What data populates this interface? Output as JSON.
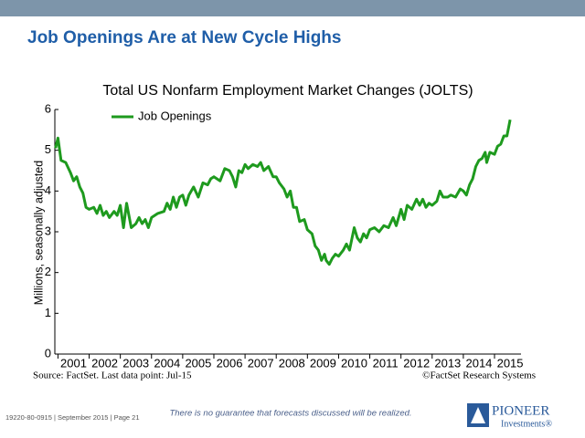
{
  "slide": {
    "title": "Job Openings Are at New Cycle Highs",
    "source": "Source: FactSet. Last data point: Jul-15",
    "copyright": "©FactSet Research Systems",
    "footer_code": "19220-80-0915 | September 2015 | Page 21",
    "disclaimer": "There is no guarantee that forecasts discussed will be realized.",
    "logo_name": "PIONEER",
    "logo_sub": "Investments®"
  },
  "chart_data": {
    "type": "line",
    "title": "Total US Nonfarm Employment Market Changes (JOLTS)",
    "ylabel": "Millions, seasonally adjusted",
    "xlim": [
      2000.9,
      2015.85
    ],
    "ylim": [
      0,
      6
    ],
    "yticks": [
      0,
      1,
      2,
      3,
      4,
      5,
      6
    ],
    "xticks": [
      2001,
      2002,
      2003,
      2004,
      2005,
      2006,
      2007,
      2008,
      2009,
      2010,
      2011,
      2012,
      2013,
      2014,
      2015
    ],
    "legend": "upper left",
    "x": [
      2000.92,
      2001.0,
      2001.1,
      2001.25,
      2001.4,
      2001.5,
      2001.6,
      2001.7,
      2001.8,
      2001.9,
      2002.0,
      2002.15,
      2002.25,
      2002.35,
      2002.45,
      2002.55,
      2002.65,
      2002.8,
      2002.9,
      2003.0,
      2003.1,
      2003.2,
      2003.35,
      2003.5,
      2003.6,
      2003.7,
      2003.8,
      2003.9,
      2004.0,
      2004.2,
      2004.4,
      2004.5,
      2004.6,
      2004.7,
      2004.8,
      2004.9,
      2005.0,
      2005.1,
      2005.2,
      2005.35,
      2005.5,
      2005.65,
      2005.8,
      2005.9,
      2006.0,
      2006.2,
      2006.35,
      2006.5,
      2006.6,
      2006.7,
      2006.8,
      2006.9,
      2007.0,
      2007.1,
      2007.25,
      2007.4,
      2007.5,
      2007.6,
      2007.75,
      2007.9,
      2008.0,
      2008.1,
      2008.25,
      2008.35,
      2008.45,
      2008.55,
      2008.65,
      2008.75,
      2008.9,
      2009.0,
      2009.15,
      2009.25,
      2009.35,
      2009.45,
      2009.55,
      2009.6,
      2009.7,
      2009.8,
      2009.9,
      2010.0,
      2010.15,
      2010.25,
      2010.35,
      2010.5,
      2010.6,
      2010.7,
      2010.8,
      2010.9,
      2011.0,
      2011.15,
      2011.3,
      2011.45,
      2011.6,
      2011.75,
      2011.85,
      2012.0,
      2012.1,
      2012.2,
      2012.35,
      2012.5,
      2012.6,
      2012.7,
      2012.8,
      2012.9,
      2013.0,
      2013.15,
      2013.25,
      2013.35,
      2013.5,
      2013.6,
      2013.75,
      2013.9,
      2014.0,
      2014.1,
      2014.2,
      2014.3,
      2014.4,
      2014.5,
      2014.6,
      2014.7,
      2014.75,
      2014.85,
      2015.0,
      2015.1,
      2015.2,
      2015.3,
      2015.4,
      2015.5
    ],
    "series": [
      {
        "name": "Job Openings",
        "color": "#1e9a1e",
        "values": [
          5.05,
          5.3,
          4.75,
          4.7,
          4.45,
          4.25,
          4.35,
          4.1,
          3.95,
          3.6,
          3.55,
          3.6,
          3.45,
          3.65,
          3.4,
          3.5,
          3.35,
          3.5,
          3.4,
          3.65,
          3.1,
          3.7,
          3.1,
          3.2,
          3.35,
          3.2,
          3.3,
          3.1,
          3.35,
          3.45,
          3.5,
          3.7,
          3.55,
          3.85,
          3.6,
          3.85,
          3.9,
          3.65,
          3.9,
          4.1,
          3.85,
          4.2,
          4.15,
          4.3,
          4.35,
          4.25,
          4.55,
          4.5,
          4.35,
          4.1,
          4.5,
          4.45,
          4.65,
          4.55,
          4.65,
          4.6,
          4.7,
          4.5,
          4.6,
          4.35,
          4.35,
          4.2,
          4.05,
          3.85,
          4.0,
          3.6,
          3.6,
          3.25,
          3.3,
          3.05,
          2.95,
          2.65,
          2.55,
          2.3,
          2.45,
          2.3,
          2.2,
          2.35,
          2.45,
          2.4,
          2.55,
          2.7,
          2.55,
          3.1,
          2.85,
          2.75,
          2.95,
          2.85,
          3.05,
          3.1,
          3.0,
          3.15,
          3.1,
          3.35,
          3.15,
          3.55,
          3.3,
          3.65,
          3.55,
          3.8,
          3.65,
          3.8,
          3.6,
          3.7,
          3.65,
          3.75,
          4.0,
          3.85,
          3.85,
          3.9,
          3.85,
          4.05,
          4.0,
          3.9,
          4.15,
          4.3,
          4.6,
          4.75,
          4.8,
          4.95,
          4.7,
          4.95,
          4.9,
          5.1,
          5.15,
          5.35,
          5.35,
          5.75
        ]
      }
    ]
  }
}
